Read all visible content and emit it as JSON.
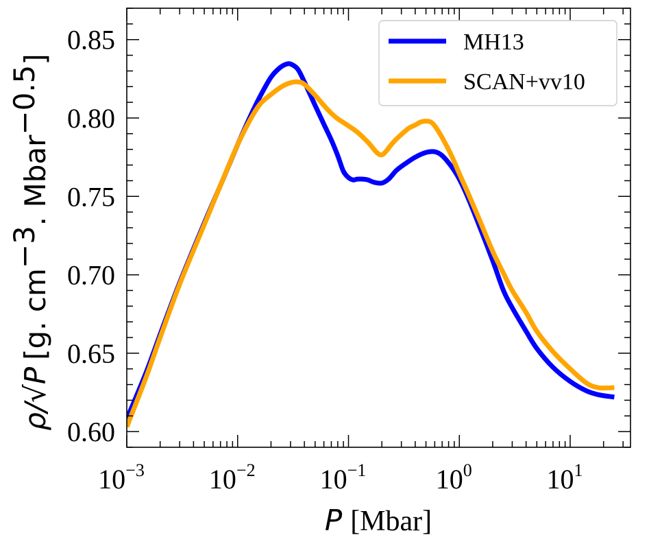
{
  "chart_data": {
    "type": "line",
    "xscale": "log",
    "xlim": [
      0.001,
      35
    ],
    "ylim": [
      0.59,
      0.87
    ],
    "grid": false,
    "legend_position": "top-right",
    "xlabel": {
      "symbol": "P",
      "unit": "[Mbar]"
    },
    "ylabel": {
      "symbol": "ρ/√P",
      "unit_prefix": "[g. cm",
      "unit_exp1": "−3",
      "unit_mid": ". Mbar",
      "unit_exp2": "−0.5",
      "unit_suffix": "]"
    },
    "x_ticks": [
      {
        "value": 0.001,
        "base": "10",
        "exp": "−3"
      },
      {
        "value": 0.01,
        "base": "10",
        "exp": "−2"
      },
      {
        "value": 0.1,
        "base": "10",
        "exp": "−1"
      },
      {
        "value": 1,
        "base": "10",
        "exp": "0"
      },
      {
        "value": 10,
        "base": "10",
        "exp": "1"
      }
    ],
    "y_ticks": [
      {
        "value": 0.6,
        "label": "0.60"
      },
      {
        "value": 0.65,
        "label": "0.65"
      },
      {
        "value": 0.7,
        "label": "0.70"
      },
      {
        "value": 0.75,
        "label": "0.75"
      },
      {
        "value": 0.8,
        "label": "0.80"
      },
      {
        "value": 0.85,
        "label": "0.85"
      }
    ],
    "series": [
      {
        "name": "MH13",
        "color": "#0000ff",
        "x": [
          0.001,
          0.0015,
          0.002,
          0.003,
          0.005,
          0.007,
          0.01,
          0.013,
          0.016,
          0.02,
          0.024,
          0.028,
          0.031,
          0.035,
          0.04,
          0.05,
          0.06,
          0.07,
          0.08,
          0.09,
          0.1,
          0.11,
          0.12,
          0.135,
          0.15,
          0.17,
          0.2,
          0.23,
          0.27,
          0.32,
          0.4,
          0.5,
          0.6,
          0.7,
          0.85,
          1.0,
          1.2,
          1.5,
          2.0,
          2.5,
          3.0,
          4.0,
          5.0,
          7.0,
          10.0,
          14.0,
          18.0,
          25.0
        ],
        "y": [
          0.608,
          0.638,
          0.662,
          0.695,
          0.733,
          0.757,
          0.783,
          0.801,
          0.814,
          0.826,
          0.832,
          0.8345,
          0.834,
          0.831,
          0.823,
          0.808,
          0.796,
          0.786,
          0.776,
          0.766,
          0.762,
          0.7605,
          0.761,
          0.761,
          0.7605,
          0.759,
          0.7585,
          0.761,
          0.7665,
          0.7705,
          0.775,
          0.778,
          0.7785,
          0.776,
          0.769,
          0.761,
          0.749,
          0.732,
          0.709,
          0.69,
          0.679,
          0.664,
          0.653,
          0.641,
          0.632,
          0.626,
          0.6235,
          0.622
        ]
      },
      {
        "name": "SCAN+vv10",
        "color": "#ffa500",
        "x": [
          0.001,
          0.0015,
          0.002,
          0.003,
          0.005,
          0.007,
          0.01,
          0.013,
          0.016,
          0.02,
          0.025,
          0.03,
          0.035,
          0.04,
          0.05,
          0.06,
          0.07,
          0.08,
          0.1,
          0.12,
          0.15,
          0.18,
          0.2,
          0.22,
          0.24,
          0.27,
          0.3,
          0.35,
          0.4,
          0.45,
          0.5,
          0.55,
          0.6,
          0.7,
          0.85,
          1.0,
          1.2,
          1.5,
          2.0,
          2.5,
          3.0,
          4.0,
          5.0,
          7.0,
          10.0,
          14.0,
          18.0,
          25.0
        ],
        "y": [
          0.603,
          0.635,
          0.66,
          0.694,
          0.732,
          0.757,
          0.783,
          0.799,
          0.809,
          0.815,
          0.82,
          0.8225,
          0.823,
          0.8215,
          0.8145,
          0.808,
          0.803,
          0.7995,
          0.795,
          0.791,
          0.7845,
          0.778,
          0.7765,
          0.779,
          0.7825,
          0.7865,
          0.7895,
          0.7935,
          0.7955,
          0.7975,
          0.798,
          0.7975,
          0.795,
          0.7875,
          0.776,
          0.7645,
          0.752,
          0.736,
          0.715,
          0.701,
          0.69,
          0.676,
          0.664,
          0.651,
          0.64,
          0.631,
          0.628,
          0.628
        ]
      }
    ]
  }
}
